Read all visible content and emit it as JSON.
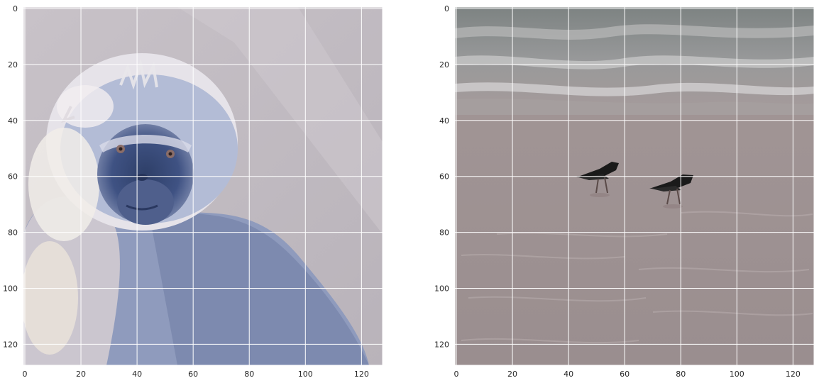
{
  "figure": {
    "panels": [
      {
        "name": "monkey",
        "x_ticks": [
          {
            "value": 0,
            "label": "0"
          },
          {
            "value": 20,
            "label": "20"
          },
          {
            "value": 40,
            "label": "40"
          },
          {
            "value": 60,
            "label": "60"
          },
          {
            "value": 80,
            "label": "80"
          },
          {
            "value": 100,
            "label": "100"
          },
          {
            "value": 120,
            "label": "120"
          }
        ],
        "y_ticks": [
          {
            "value": 0,
            "label": "0"
          },
          {
            "value": 20,
            "label": "20"
          },
          {
            "value": 40,
            "label": "40"
          },
          {
            "value": 60,
            "label": "60"
          },
          {
            "value": 80,
            "label": "80"
          },
          {
            "value": 100,
            "label": "100"
          },
          {
            "value": 120,
            "label": "120"
          }
        ]
      },
      {
        "name": "birds",
        "x_ticks": [
          {
            "value": 0,
            "label": "0"
          },
          {
            "value": 20,
            "label": "20"
          },
          {
            "value": 40,
            "label": "40"
          },
          {
            "value": 60,
            "label": "60"
          },
          {
            "value": 80,
            "label": "80"
          },
          {
            "value": 100,
            "label": "100"
          },
          {
            "value": 120,
            "label": "120"
          }
        ],
        "y_ticks": [
          {
            "value": 0,
            "label": "0"
          },
          {
            "value": 20,
            "label": "20"
          },
          {
            "value": 40,
            "label": "40"
          },
          {
            "value": 60,
            "label": "60"
          },
          {
            "value": 80,
            "label": "80"
          },
          {
            "value": 100,
            "label": "100"
          },
          {
            "value": 120,
            "label": "120"
          }
        ]
      }
    ],
    "image_extent": [
      0,
      128
    ],
    "grid": true,
    "colors": {
      "grid": "#ffffff",
      "tick_text": "#262626",
      "monkey_bg": "#c2bcc3",
      "monkey_fur": "#9aa2bf",
      "monkey_face": "#3b4d7a",
      "beach_sand": "#9c9090",
      "sea_water": "#7f8484",
      "bird": "#1a1a1a"
    }
  }
}
